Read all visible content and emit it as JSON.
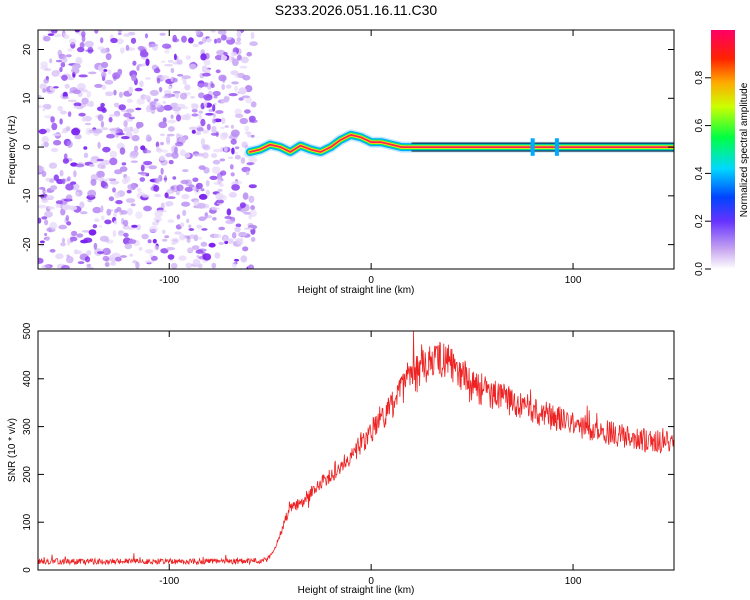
{
  "title": "S233.2026.051.16.11.C30",
  "chart_data": [
    {
      "type": "heatmap",
      "title": "S233.2026.051.16.11.C30",
      "xlabel": "Height of straight line (km)",
      "ylabel": "Frequency (Hz)",
      "xlim": [
        -165,
        150
      ],
      "ylim": [
        -25,
        24
      ],
      "xticks": [
        -100,
        0,
        100
      ],
      "yticks": [
        -20,
        -10,
        0,
        10,
        20
      ],
      "noise_region_x": [
        -165,
        -60
      ],
      "signal_track": {
        "x": [
          -60,
          -55,
          -50,
          -45,
          -40,
          -35,
          -30,
          -25,
          -20,
          -15,
          -10,
          -5,
          0,
          5,
          10,
          15,
          20,
          30,
          40,
          60,
          80,
          100,
          120,
          150
        ],
        "y": [
          -1,
          -0.5,
          0.5,
          0,
          -1,
          0.3,
          -0.5,
          -1,
          0,
          1.5,
          2.5,
          2,
          1,
          1,
          0.5,
          0,
          0,
          0,
          0,
          0,
          0,
          0,
          0,
          0
        ]
      },
      "colorbar": {
        "label": "Normalized spectral amplitude",
        "range": [
          0,
          1
        ],
        "ticks": [
          "0.0",
          "0.2",
          "0.4",
          "0.6",
          "0.8"
        ]
      },
      "colors": {
        "noise": "#7733dd",
        "track_core": "#ff2255",
        "track_edge": "#00ccff"
      }
    },
    {
      "type": "line",
      "xlabel": "Height of straight line (km)",
      "ylabel": "SNR (10 * v/v)",
      "xlim": [
        -165,
        150
      ],
      "ylim": [
        0,
        500
      ],
      "xticks": [
        -100,
        0,
        100
      ],
      "yticks": [
        0,
        100,
        200,
        300,
        400,
        500
      ],
      "color": "#ee2222",
      "series": [
        {
          "name": "SNR",
          "x": [
            -165,
            -140,
            -120,
            -100,
            -80,
            -60,
            -52,
            -48,
            -45,
            -42,
            -40,
            -35,
            -30,
            -25,
            -20,
            -15,
            -10,
            -5,
            0,
            5,
            10,
            15,
            20,
            25,
            30,
            35,
            40,
            45,
            50,
            60,
            70,
            80,
            90,
            100,
            110,
            120,
            130,
            140,
            150
          ],
          "y": [
            18,
            18,
            18,
            18,
            18,
            18,
            20,
            40,
            75,
            110,
            130,
            140,
            160,
            180,
            200,
            220,
            240,
            265,
            290,
            320,
            345,
            375,
            400,
            425,
            435,
            440,
            430,
            410,
            385,
            370,
            350,
            335,
            320,
            305,
            295,
            285,
            275,
            270,
            265
          ]
        }
      ]
    }
  ]
}
